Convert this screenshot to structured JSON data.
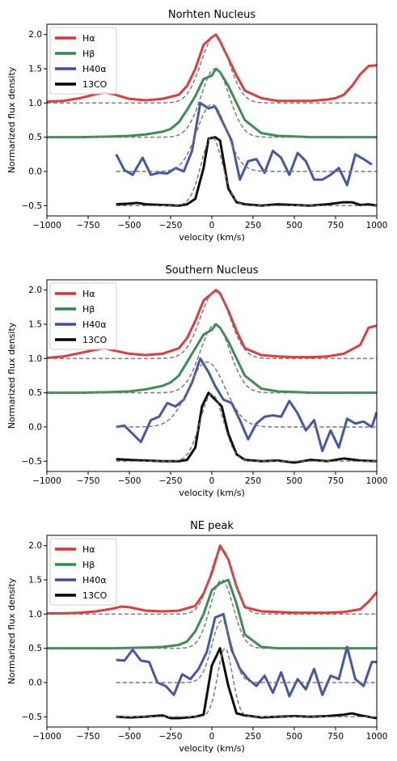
{
  "xlabel": "velocity (km/s)",
  "ylabel": "Normarized flux density",
  "xlim": [
    -1000,
    1000
  ],
  "ylim": [
    -0.65,
    2.15
  ],
  "xticks": [
    -1000,
    -750,
    -500,
    -250,
    0,
    250,
    500,
    750,
    1000
  ],
  "yticks": [
    -0.5,
    0.0,
    0.5,
    1.0,
    1.5,
    2.0
  ],
  "xtick_labels": [
    "−1000",
    "−750",
    "−500",
    "−250",
    "0",
    "250",
    "500",
    "750",
    "1000"
  ],
  "ytick_labels": [
    "−0.5",
    "0.0",
    "0.5",
    "1.0",
    "1.5",
    "2.0"
  ],
  "colors": {
    "halpha": "#e03030",
    "hbeta": "#2e8a45",
    "h40": "#3a4fa3",
    "co": "#000000",
    "fit": "#808080"
  },
  "chart_data": [
    {
      "type": "line",
      "title": "Norhten Nucleus",
      "legend": [
        "Hα",
        "Hβ",
        "H40α",
        "13CO"
      ],
      "series": [
        {
          "name": "Hα",
          "color": "#e03030",
          "x": [
            -1000,
            -900,
            -800,
            -700,
            -650,
            -600,
            -500,
            -400,
            -300,
            -200,
            -150,
            -100,
            -50,
            0,
            25,
            50,
            100,
            150,
            200,
            300,
            400,
            500,
            600,
            700,
            750,
            800,
            850,
            900,
            950,
            1000
          ],
          "y": [
            1.02,
            1.03,
            1.07,
            1.13,
            1.15,
            1.13,
            1.06,
            1.04,
            1.06,
            1.12,
            1.25,
            1.5,
            1.85,
            1.96,
            2.0,
            1.9,
            1.65,
            1.4,
            1.18,
            1.07,
            1.03,
            1.03,
            1.03,
            1.05,
            1.07,
            1.12,
            1.25,
            1.42,
            1.54,
            1.55
          ]
        },
        {
          "name": "Hβ",
          "color": "#2e8a45",
          "x": [
            -1000,
            -800,
            -600,
            -500,
            -400,
            -300,
            -250,
            -200,
            -150,
            -100,
            -50,
            0,
            25,
            50,
            100,
            150,
            200,
            300,
            400,
            500,
            600,
            700,
            800,
            900,
            1000
          ],
          "y": [
            0.5,
            0.5,
            0.51,
            0.52,
            0.54,
            0.58,
            0.62,
            0.72,
            0.9,
            1.1,
            1.35,
            1.4,
            1.5,
            1.45,
            1.25,
            1.0,
            0.75,
            0.56,
            0.52,
            0.51,
            0.5,
            0.5,
            0.5,
            0.5,
            0.5
          ]
        },
        {
          "name": "H40α",
          "color": "#3a4fa3",
          "x": [
            -580,
            -530,
            -480,
            -420,
            -370,
            -320,
            -270,
            -220,
            -170,
            -120,
            -70,
            -20,
            20,
            70,
            120,
            170,
            220,
            270,
            320,
            370,
            420,
            470,
            520,
            570,
            620,
            670,
            720,
            770,
            820,
            870,
            920,
            970
          ],
          "y": [
            0.25,
            0.02,
            -0.05,
            0.2,
            -0.05,
            -0.02,
            -0.03,
            0.05,
            0.0,
            0.3,
            1.0,
            0.92,
            0.95,
            0.7,
            0.45,
            -0.12,
            0.15,
            0.18,
            -0.02,
            0.3,
            0.2,
            -0.05,
            0.27,
            0.15,
            -0.12,
            -0.12,
            -0.05,
            0.05,
            -0.2,
            0.25,
            0.18,
            0.1
          ]
        },
        {
          "name": "13CO",
          "color": "#000000",
          "x": [
            -580,
            -500,
            -450,
            -400,
            -300,
            -200,
            -150,
            -100,
            -50,
            -20,
            20,
            50,
            100,
            150,
            200,
            300,
            400,
            500,
            600,
            700,
            800,
            850,
            900,
            950,
            1000
          ],
          "y": [
            -0.48,
            -0.47,
            -0.46,
            -0.48,
            -0.49,
            -0.5,
            -0.48,
            -0.4,
            0.05,
            0.48,
            0.5,
            0.45,
            -0.25,
            -0.45,
            -0.48,
            -0.5,
            -0.48,
            -0.49,
            -0.5,
            -0.48,
            -0.45,
            -0.45,
            -0.49,
            -0.48,
            -0.5
          ]
        }
      ],
      "fits": [
        {
          "baseline": 1.0,
          "amp": 0.98,
          "center": 20,
          "sigma": 85,
          "x": [
            -1000,
            1000
          ]
        },
        {
          "baseline": 0.5,
          "amp": 1.0,
          "center": 20,
          "sigma": 85,
          "x": [
            -1000,
            1000
          ]
        },
        {
          "baseline": 0.0,
          "amp": 0.98,
          "center": 0,
          "sigma": 90,
          "x": [
            -580,
            1000
          ]
        },
        {
          "baseline": -0.5,
          "amp": 1.0,
          "center": 0,
          "sigma": 65,
          "x": [
            -580,
            1000
          ]
        }
      ]
    },
    {
      "type": "line",
      "title": "Southern Nucleus",
      "legend": [
        "Hα",
        "Hβ",
        "H40α",
        "13CO"
      ],
      "series": [
        {
          "name": "Hα",
          "color": "#e03030",
          "x": [
            -1000,
            -900,
            -800,
            -700,
            -650,
            -600,
            -500,
            -400,
            -300,
            -200,
            -150,
            -100,
            -50,
            0,
            25,
            50,
            100,
            150,
            200,
            300,
            400,
            500,
            600,
            700,
            800,
            900,
            950,
            1000
          ],
          "y": [
            1.01,
            1.03,
            1.08,
            1.13,
            1.15,
            1.12,
            1.07,
            1.05,
            1.07,
            1.15,
            1.3,
            1.55,
            1.85,
            1.95,
            2.0,
            1.95,
            1.7,
            1.4,
            1.15,
            1.05,
            1.03,
            1.02,
            1.02,
            1.03,
            1.07,
            1.2,
            1.45,
            1.48
          ]
        },
        {
          "name": "Hβ",
          "color": "#2e8a45",
          "x": [
            -1000,
            -800,
            -600,
            -500,
            -400,
            -300,
            -250,
            -200,
            -150,
            -100,
            -50,
            0,
            25,
            50,
            100,
            150,
            200,
            300,
            400,
            500,
            600,
            700,
            800,
            900,
            1000
          ],
          "y": [
            0.5,
            0.5,
            0.51,
            0.52,
            0.55,
            0.6,
            0.65,
            0.75,
            0.95,
            1.15,
            1.35,
            1.42,
            1.5,
            1.45,
            1.25,
            1.0,
            0.75,
            0.56,
            0.52,
            0.51,
            0.5,
            0.5,
            0.5,
            0.5,
            0.5
          ]
        },
        {
          "name": "H40α",
          "color": "#3a4fa3",
          "x": [
            -580,
            -530,
            -480,
            -430,
            -370,
            -320,
            -270,
            -220,
            -170,
            -120,
            -70,
            -20,
            20,
            70,
            120,
            170,
            220,
            270,
            320,
            370,
            420,
            470,
            520,
            570,
            620,
            670,
            720,
            770,
            820,
            870,
            920,
            970,
            1000
          ],
          "y": [
            0.0,
            0.02,
            -0.1,
            -0.22,
            0.1,
            0.15,
            0.35,
            0.3,
            0.4,
            0.65,
            1.0,
            0.8,
            0.6,
            0.4,
            0.35,
            0.1,
            -0.18,
            0.05,
            0.15,
            0.17,
            0.15,
            0.38,
            0.2,
            -0.05,
            0.1,
            -0.35,
            -0.05,
            -0.3,
            0.12,
            0.05,
            0.08,
            0.0,
            0.22
          ]
        },
        {
          "name": "13CO",
          "color": "#000000",
          "x": [
            -580,
            -500,
            -400,
            -300,
            -200,
            -150,
            -100,
            -60,
            -20,
            20,
            60,
            100,
            150,
            200,
            300,
            400,
            500,
            600,
            700,
            800,
            900,
            1000
          ],
          "y": [
            -0.47,
            -0.48,
            -0.49,
            -0.5,
            -0.5,
            -0.48,
            -0.3,
            0.3,
            0.5,
            0.4,
            0.3,
            -0.1,
            -0.4,
            -0.48,
            -0.5,
            -0.49,
            -0.52,
            -0.48,
            -0.5,
            -0.46,
            -0.49,
            -0.5
          ]
        }
      ],
      "fits": [
        {
          "baseline": 1.0,
          "amp": 0.98,
          "center": 20,
          "sigma": 90,
          "x": [
            -1000,
            1000
          ]
        },
        {
          "baseline": 0.5,
          "amp": 1.0,
          "center": 20,
          "sigma": 90,
          "x": [
            -1000,
            1000
          ]
        },
        {
          "baseline": 0.0,
          "amp": 0.95,
          "center": -30,
          "sigma": 110,
          "x": [
            -580,
            1000
          ]
        },
        {
          "baseline": -0.5,
          "amp": 0.98,
          "center": 0,
          "sigma": 70,
          "x": [
            -580,
            1000
          ]
        }
      ]
    },
    {
      "type": "line",
      "title": "NE peak",
      "legend": [
        "Hα",
        "Hβ",
        "H40α",
        "13CO"
      ],
      "series": [
        {
          "name": "Hα",
          "color": "#e03030",
          "x": [
            -1000,
            -900,
            -800,
            -700,
            -600,
            -550,
            -500,
            -400,
            -300,
            -200,
            -100,
            -50,
            0,
            50,
            100,
            150,
            200,
            300,
            400,
            500,
            600,
            700,
            800,
            900,
            950,
            1000
          ],
          "y": [
            1.01,
            1.01,
            1.02,
            1.04,
            1.08,
            1.11,
            1.1,
            1.05,
            1.04,
            1.05,
            1.12,
            1.3,
            1.6,
            2.0,
            1.8,
            1.4,
            1.1,
            1.04,
            1.03,
            1.02,
            1.02,
            1.02,
            1.03,
            1.07,
            1.18,
            1.32
          ]
        },
        {
          "name": "Hβ",
          "color": "#2e8a45",
          "x": [
            -1000,
            -800,
            -600,
            -400,
            -300,
            -200,
            -150,
            -100,
            -50,
            0,
            50,
            100,
            150,
            200,
            300,
            400,
            500,
            600,
            700,
            800,
            900,
            1000
          ],
          "y": [
            0.5,
            0.5,
            0.5,
            0.51,
            0.52,
            0.55,
            0.6,
            0.75,
            1.0,
            1.35,
            1.45,
            1.5,
            1.15,
            0.7,
            0.52,
            0.5,
            0.5,
            0.5,
            0.5,
            0.5,
            0.5,
            0.5
          ]
        },
        {
          "name": "H40α",
          "color": "#3a4fa3",
          "x": [
            -580,
            -530,
            -480,
            -430,
            -380,
            -330,
            -280,
            -230,
            -180,
            -130,
            -80,
            -30,
            20,
            70,
            120,
            170,
            220,
            270,
            320,
            370,
            420,
            470,
            520,
            570,
            620,
            670,
            720,
            770,
            820,
            870,
            920,
            970,
            1000
          ],
          "y": [
            0.33,
            0.32,
            0.48,
            0.32,
            0.3,
            0.0,
            -0.05,
            -0.18,
            0.12,
            0.05,
            0.2,
            0.45,
            0.95,
            1.0,
            0.48,
            0.2,
            0.05,
            -0.05,
            0.1,
            -0.15,
            0.15,
            -0.2,
            0.05,
            -0.1,
            0.2,
            -0.18,
            0.1,
            0.05,
            0.52,
            0.05,
            -0.05,
            0.3,
            0.3
          ]
        },
        {
          "name": "13CO",
          "color": "#000000",
          "x": [
            -580,
            -500,
            -400,
            -300,
            -250,
            -200,
            -100,
            -50,
            0,
            50,
            100,
            150,
            200,
            300,
            400,
            500,
            600,
            700,
            800,
            850,
            900,
            950,
            1000
          ],
          "y": [
            -0.5,
            -0.51,
            -0.5,
            -0.48,
            -0.52,
            -0.52,
            -0.5,
            -0.47,
            0.25,
            0.5,
            -0.05,
            -0.45,
            -0.48,
            -0.51,
            -0.5,
            -0.49,
            -0.5,
            -0.49,
            -0.47,
            -0.45,
            -0.48,
            -0.5,
            -0.52
          ]
        }
      ],
      "fits": [
        {
          "baseline": 1.0,
          "amp": 0.95,
          "center": 60,
          "sigma": 70,
          "x": [
            -1000,
            1000
          ]
        },
        {
          "baseline": 0.5,
          "amp": 1.0,
          "center": 60,
          "sigma": 70,
          "x": [
            -1000,
            1000
          ]
        },
        {
          "baseline": 0.0,
          "amp": 0.9,
          "center": 60,
          "sigma": 60,
          "x": [
            -580,
            1000
          ]
        },
        {
          "baseline": -0.5,
          "amp": 1.0,
          "center": 80,
          "sigma": 45,
          "x": [
            -580,
            1000
          ]
        }
      ]
    }
  ]
}
